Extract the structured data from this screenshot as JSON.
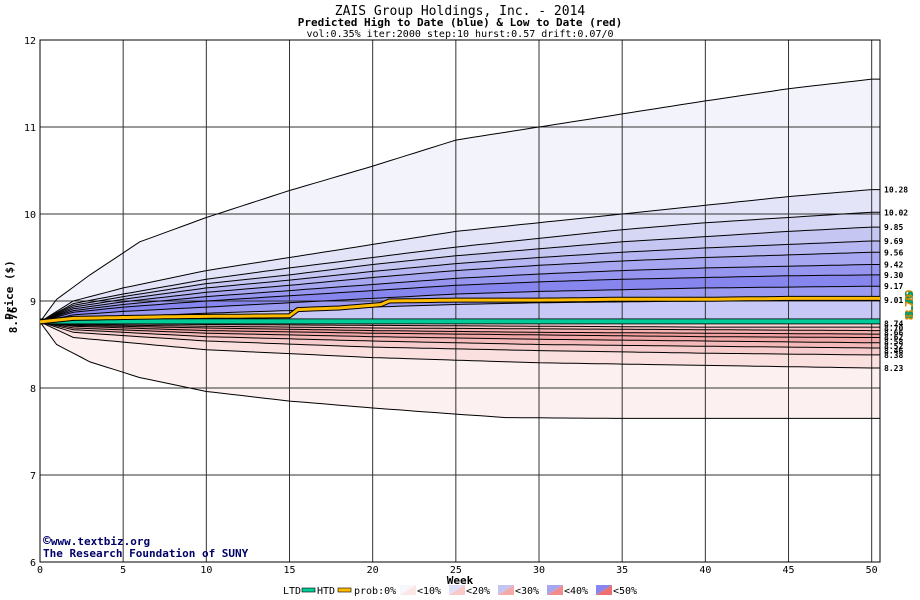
{
  "chart_data": {
    "type": "area",
    "title": "ZAIS Group Holdings, Inc. - 2014",
    "subtitle": "Predicted High to Date (blue) &  Low to Date (red)",
    "params": "vol:0.35% iter:2000 step:10 hurst:0.57 drift:0.07/0",
    "xlabel": "Week",
    "ylabel": "Price ($)",
    "current_price_label": "8.76",
    "right_vertical_labels": [
      "8.79",
      "8.76",
      "8.76",
      "8.79"
    ],
    "xlim": [
      0,
      50.5
    ],
    "ylim": [
      6,
      12
    ],
    "x_ticks": [
      0,
      5,
      10,
      15,
      20,
      25,
      30,
      35,
      40,
      45,
      50
    ],
    "y_ticks": [
      6,
      7,
      8,
      9,
      10,
      11,
      12
    ],
    "grid": true,
    "credits": [
      "www.textbiz.org",
      "The Research Foundation of SUNY"
    ],
    "start_price": 8.76,
    "high_percentile_curves": [
      {
        "end": 11.55,
        "label": "",
        "pts": [
          [
            0,
            8.76
          ],
          [
            1,
            9.02
          ],
          [
            3,
            9.3
          ],
          [
            6,
            9.68
          ],
          [
            10,
            9.96
          ],
          [
            15,
            10.27
          ],
          [
            20,
            10.55
          ],
          [
            25,
            10.85
          ],
          [
            30,
            11.0
          ],
          [
            35,
            11.15
          ],
          [
            40,
            11.3
          ],
          [
            45,
            11.44
          ],
          [
            50,
            11.55
          ]
        ]
      },
      {
        "end": 10.28,
        "label": "10.28",
        "pts": [
          [
            0,
            8.76
          ],
          [
            2,
            9.0
          ],
          [
            5,
            9.15
          ],
          [
            10,
            9.35
          ],
          [
            15,
            9.5
          ],
          [
            20,
            9.65
          ],
          [
            25,
            9.8
          ],
          [
            30,
            9.9
          ],
          [
            35,
            10.0
          ],
          [
            40,
            10.1
          ],
          [
            45,
            10.2
          ],
          [
            50,
            10.28
          ]
        ]
      },
      {
        "end": 10.02,
        "label": "10.02",
        "pts": [
          [
            0,
            8.76
          ],
          [
            2,
            8.97
          ],
          [
            5,
            9.08
          ],
          [
            10,
            9.25
          ],
          [
            15,
            9.38
          ],
          [
            20,
            9.5
          ],
          [
            25,
            9.62
          ],
          [
            30,
            9.72
          ],
          [
            35,
            9.82
          ],
          [
            40,
            9.9
          ],
          [
            45,
            9.96
          ],
          [
            50,
            10.02
          ]
        ]
      },
      {
        "end": 9.85,
        "label": "9.85",
        "pts": [
          [
            0,
            8.76
          ],
          [
            2,
            8.95
          ],
          [
            5,
            9.05
          ],
          [
            10,
            9.2
          ],
          [
            15,
            9.3
          ],
          [
            20,
            9.42
          ],
          [
            25,
            9.52
          ],
          [
            30,
            9.6
          ],
          [
            35,
            9.68
          ],
          [
            40,
            9.74
          ],
          [
            45,
            9.8
          ],
          [
            50,
            9.85
          ]
        ]
      },
      {
        "end": 9.69,
        "label": "9.69",
        "pts": [
          [
            0,
            8.76
          ],
          [
            2,
            8.93
          ],
          [
            5,
            9.02
          ],
          [
            10,
            9.15
          ],
          [
            15,
            9.24
          ],
          [
            20,
            9.34
          ],
          [
            25,
            9.43
          ],
          [
            30,
            9.5
          ],
          [
            35,
            9.56
          ],
          [
            40,
            9.61
          ],
          [
            45,
            9.65
          ],
          [
            50,
            9.69
          ]
        ]
      },
      {
        "end": 9.56,
        "label": "9.56",
        "pts": [
          [
            0,
            8.76
          ],
          [
            2,
            8.91
          ],
          [
            5,
            8.99
          ],
          [
            10,
            9.1
          ],
          [
            15,
            9.18
          ],
          [
            20,
            9.27
          ],
          [
            25,
            9.35
          ],
          [
            30,
            9.41
          ],
          [
            35,
            9.46
          ],
          [
            40,
            9.5
          ],
          [
            45,
            9.53
          ],
          [
            50,
            9.56
          ]
        ]
      },
      {
        "end": 9.42,
        "label": "9.42",
        "pts": [
          [
            0,
            8.76
          ],
          [
            2,
            8.89
          ],
          [
            5,
            8.96
          ],
          [
            10,
            9.05
          ],
          [
            15,
            9.12
          ],
          [
            20,
            9.19
          ],
          [
            25,
            9.26
          ],
          [
            30,
            9.31
          ],
          [
            35,
            9.35
          ],
          [
            40,
            9.38
          ],
          [
            45,
            9.4
          ],
          [
            50,
            9.42
          ]
        ]
      },
      {
        "end": 9.3,
        "label": "9.30",
        "pts": [
          [
            0,
            8.76
          ],
          [
            2,
            8.87
          ],
          [
            5,
            8.93
          ],
          [
            10,
            9.0
          ],
          [
            15,
            9.06
          ],
          [
            20,
            9.12
          ],
          [
            25,
            9.18
          ],
          [
            30,
            9.22
          ],
          [
            35,
            9.25
          ],
          [
            40,
            9.27
          ],
          [
            45,
            9.29
          ],
          [
            50,
            9.3
          ]
        ]
      },
      {
        "end": 9.17,
        "label": "9.17",
        "pts": [
          [
            0,
            8.76
          ],
          [
            2,
            8.84
          ],
          [
            5,
            8.88
          ],
          [
            10,
            8.93
          ],
          [
            15,
            8.98
          ],
          [
            20,
            9.03
          ],
          [
            25,
            9.08
          ],
          [
            30,
            9.11
          ],
          [
            35,
            9.13
          ],
          [
            40,
            9.15
          ],
          [
            45,
            9.16
          ],
          [
            50,
            9.17
          ]
        ]
      },
      {
        "end": 9.01,
        "label": "9.01",
        "pts": [
          [
            0,
            8.76
          ],
          [
            2,
            8.8
          ],
          [
            5,
            8.82
          ],
          [
            10,
            8.86
          ],
          [
            15,
            8.89
          ],
          [
            20,
            8.93
          ],
          [
            25,
            8.96
          ],
          [
            30,
            8.98
          ],
          [
            35,
            8.99
          ],
          [
            40,
            9.0
          ],
          [
            45,
            9.01
          ],
          [
            50,
            9.01
          ]
        ]
      }
    ],
    "low_percentile_curves": [
      {
        "end": 8.74,
        "label": "8.74",
        "pts": [
          [
            0,
            8.76
          ],
          [
            5,
            8.75
          ],
          [
            10,
            8.75
          ],
          [
            20,
            8.74
          ],
          [
            30,
            8.74
          ],
          [
            40,
            8.74
          ],
          [
            50,
            8.74
          ]
        ]
      },
      {
        "end": 8.7,
        "label": "8.70",
        "pts": [
          [
            0,
            8.76
          ],
          [
            2,
            8.74
          ],
          [
            10,
            8.73
          ],
          [
            20,
            8.72
          ],
          [
            30,
            8.71
          ],
          [
            40,
            8.7
          ],
          [
            50,
            8.7
          ]
        ]
      },
      {
        "end": 8.66,
        "label": "8.66",
        "pts": [
          [
            0,
            8.76
          ],
          [
            2,
            8.73
          ],
          [
            10,
            8.71
          ],
          [
            20,
            8.69
          ],
          [
            30,
            8.68
          ],
          [
            40,
            8.67
          ],
          [
            50,
            8.66
          ]
        ]
      },
      {
        "end": 8.62,
        "label": "8.62",
        "pts": [
          [
            0,
            8.76
          ],
          [
            2,
            8.72
          ],
          [
            10,
            8.69
          ],
          [
            20,
            8.66
          ],
          [
            30,
            8.64
          ],
          [
            40,
            8.63
          ],
          [
            50,
            8.62
          ]
        ]
      },
      {
        "end": 8.58,
        "label": "8.58",
        "pts": [
          [
            0,
            8.76
          ],
          [
            2,
            8.71
          ],
          [
            10,
            8.66
          ],
          [
            20,
            8.63
          ],
          [
            30,
            8.61
          ],
          [
            40,
            8.59
          ],
          [
            50,
            8.58
          ]
        ]
      },
      {
        "end": 8.52,
        "label": "8.52",
        "pts": [
          [
            0,
            8.76
          ],
          [
            2,
            8.69
          ],
          [
            10,
            8.63
          ],
          [
            20,
            8.59
          ],
          [
            30,
            8.56
          ],
          [
            40,
            8.54
          ],
          [
            50,
            8.52
          ]
        ]
      },
      {
        "end": 8.46,
        "label": "8.46",
        "pts": [
          [
            0,
            8.76
          ],
          [
            2,
            8.67
          ],
          [
            10,
            8.59
          ],
          [
            20,
            8.54
          ],
          [
            30,
            8.5
          ],
          [
            40,
            8.48
          ],
          [
            50,
            8.46
          ]
        ]
      },
      {
        "end": 8.38,
        "label": "8.38",
        "pts": [
          [
            0,
            8.76
          ],
          [
            2,
            8.64
          ],
          [
            10,
            8.54
          ],
          [
            20,
            8.47
          ],
          [
            30,
            8.43
          ],
          [
            40,
            8.4
          ],
          [
            50,
            8.38
          ]
        ]
      },
      {
        "end": 8.23,
        "label": "8.23",
        "pts": [
          [
            0,
            8.76
          ],
          [
            2,
            8.58
          ],
          [
            10,
            8.44
          ],
          [
            20,
            8.35
          ],
          [
            30,
            8.29
          ],
          [
            40,
            8.26
          ],
          [
            50,
            8.23
          ]
        ]
      },
      {
        "end": 7.65,
        "label": "",
        "pts": [
          [
            0,
            8.76
          ],
          [
            1,
            8.5
          ],
          [
            3,
            8.3
          ],
          [
            6,
            8.12
          ],
          [
            10,
            7.96
          ],
          [
            15,
            7.85
          ],
          [
            20,
            7.77
          ],
          [
            25,
            7.7
          ],
          [
            28,
            7.66
          ],
          [
            35,
            7.65
          ],
          [
            40,
            7.65
          ],
          [
            45,
            7.65
          ],
          [
            50,
            7.65
          ]
        ]
      }
    ],
    "htd_line": {
      "name": "HTD",
      "color": "#ffbb00",
      "pts": [
        [
          0,
          8.76
        ],
        [
          2,
          8.8
        ],
        [
          8,
          8.82
        ],
        [
          15,
          8.83
        ],
        [
          15.3,
          8.9
        ],
        [
          18,
          8.92
        ],
        [
          20.5,
          8.96
        ],
        [
          21,
          9.0
        ],
        [
          25,
          9.01
        ],
        [
          30,
          9.01
        ],
        [
          35,
          9.02
        ],
        [
          40,
          9.02
        ],
        [
          45,
          9.03
        ],
        [
          50,
          9.03
        ]
      ]
    },
    "ltd_line": {
      "name": "LTD",
      "color": "#00cc99",
      "value": 8.76
    },
    "high_band_colors": [
      "#f3f3fc",
      "#e4e4f8",
      "#d6d6f5",
      "#c6c6f3",
      "#b6b6f2",
      "#a6a6f1",
      "#9696f0",
      "#8686ee",
      "#9a9af0",
      "#c8c8f6"
    ],
    "low_band_colors": [
      "#eaf8f3",
      "#fbd6d6",
      "#f9c3c3",
      "#f6b0b0",
      "#f3a0a0",
      "#f0a8a8",
      "#f4baba",
      "#f7cccc",
      "#fbe0e0",
      "#fdf0f0"
    ],
    "legend": {
      "ltd": "LTD",
      "htd": "HTD",
      "prob": "prob:0%",
      "items": [
        {
          "label": "<10%",
          "color": "#f6f6fd"
        },
        {
          "label": "<20%",
          "color": "#e0e0f8"
        },
        {
          "label": "<30%",
          "color": "#c4c4f3"
        },
        {
          "label": "<40%",
          "color": "#a6a6f1"
        },
        {
          "label": "<50%",
          "color": "#8686ee"
        }
      ],
      "red_items": [
        {
          "color": "#fde6e6"
        },
        {
          "color": "#f9c8c8"
        },
        {
          "color": "#f5aaaa"
        },
        {
          "color": "#f08c8c"
        },
        {
          "color": "#ec7070"
        }
      ]
    }
  }
}
